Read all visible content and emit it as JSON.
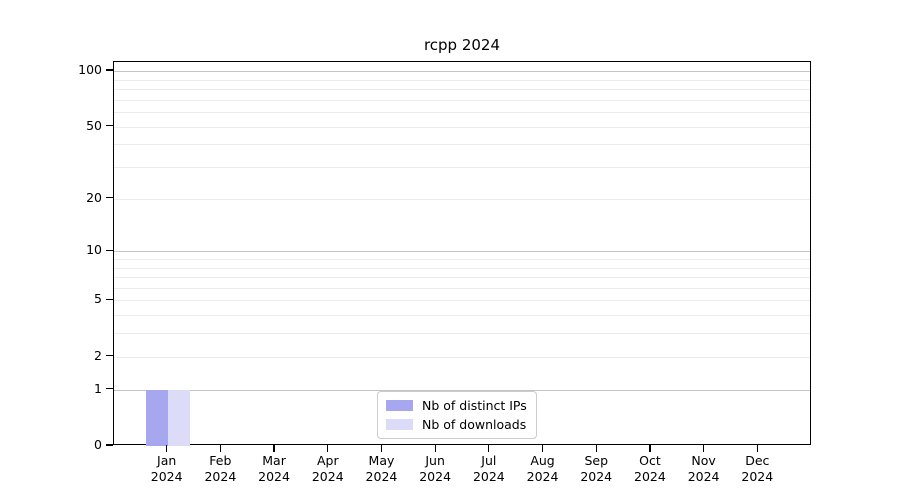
{
  "chart_data": {
    "type": "bar",
    "title": "rcpp 2024",
    "xlabel": "",
    "ylabel": "",
    "scale": "log1p",
    "ylim": [
      0,
      112
    ],
    "yticks": [
      0,
      1,
      2,
      5,
      10,
      20,
      50,
      100
    ],
    "grid_major": [
      1,
      10,
      100
    ],
    "grid_minor": [
      2,
      3,
      4,
      5,
      6,
      7,
      8,
      9,
      20,
      30,
      40,
      50,
      60,
      70,
      80,
      90
    ],
    "grid": true,
    "legend_position": "lower center",
    "categories": [
      {
        "month": "Jan",
        "year": "2024"
      },
      {
        "month": "Feb",
        "year": "2024"
      },
      {
        "month": "Mar",
        "year": "2024"
      },
      {
        "month": "Apr",
        "year": "2024"
      },
      {
        "month": "May",
        "year": "2024"
      },
      {
        "month": "Jun",
        "year": "2024"
      },
      {
        "month": "Jul",
        "year": "2024"
      },
      {
        "month": "Aug",
        "year": "2024"
      },
      {
        "month": "Sep",
        "year": "2024"
      },
      {
        "month": "Oct",
        "year": "2024"
      },
      {
        "month": "Nov",
        "year": "2024"
      },
      {
        "month": "Dec",
        "year": "2024"
      }
    ],
    "series": [
      {
        "name": "Nb of distinct IPs",
        "color": "#a7a7f0",
        "values": [
          1,
          0,
          0,
          0,
          0,
          0,
          0,
          0,
          0,
          0,
          0,
          0
        ]
      },
      {
        "name": "Nb of downloads",
        "color": "#dcdcf8",
        "values": [
          1,
          0,
          0,
          0,
          0,
          0,
          0,
          0,
          0,
          0,
          0,
          0
        ]
      }
    ]
  },
  "colors": {
    "background": "#ffffff",
    "spine": "#000000",
    "grid_major": "#c4c4c4",
    "grid_minor": "#ececec",
    "legend_border": "#cccccc",
    "text": "#000000"
  }
}
